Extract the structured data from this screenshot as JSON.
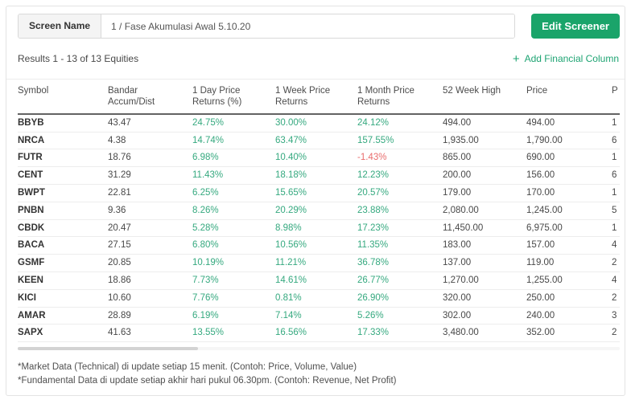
{
  "header": {
    "screen_name_label": "Screen Name",
    "screen_name_value": "1 / Fase Akumulasi Awal 5.10.20",
    "edit_button_label": "Edit Screener"
  },
  "results_bar": {
    "results_text": "Results 1 - 13 of 13 Equities",
    "plus_icon": "+",
    "add_column_label": "Add Financial Column"
  },
  "table": {
    "columns": [
      "Symbol",
      "Bandar Accum/Dist",
      "1 Day Price Returns (%)",
      "1 Week Price Returns",
      "1 Month Price Returns",
      "52 Week High",
      "Price",
      "P"
    ],
    "rows": [
      {
        "symbol": "BBYB",
        "bandar_accum_dist": "43.47",
        "day_return": "24.75%",
        "week_return": "30.00%",
        "month_return": "24.12%",
        "week52_high": "494.00",
        "price": "494.00",
        "p": "1"
      },
      {
        "symbol": "NRCA",
        "bandar_accum_dist": "4.38",
        "day_return": "14.74%",
        "week_return": "63.47%",
        "month_return": "157.55%",
        "week52_high": "1,935.00",
        "price": "1,790.00",
        "p": "6"
      },
      {
        "symbol": "FUTR",
        "bandar_accum_dist": "18.76",
        "day_return": "6.98%",
        "week_return": "10.40%",
        "month_return": "-1.43%",
        "week52_high": "865.00",
        "price": "690.00",
        "p": "1"
      },
      {
        "symbol": "CENT",
        "bandar_accum_dist": "31.29",
        "day_return": "11.43%",
        "week_return": "18.18%",
        "month_return": "12.23%",
        "week52_high": "200.00",
        "price": "156.00",
        "p": "6"
      },
      {
        "symbol": "BWPT",
        "bandar_accum_dist": "22.81",
        "day_return": "6.25%",
        "week_return": "15.65%",
        "month_return": "20.57%",
        "week52_high": "179.00",
        "price": "170.00",
        "p": "1"
      },
      {
        "symbol": "PNBN",
        "bandar_accum_dist": "9.36",
        "day_return": "8.26%",
        "week_return": "20.29%",
        "month_return": "23.88%",
        "week52_high": "2,080.00",
        "price": "1,245.00",
        "p": "5"
      },
      {
        "symbol": "CBDK",
        "bandar_accum_dist": "20.47",
        "day_return": "5.28%",
        "week_return": "8.98%",
        "month_return": "17.23%",
        "week52_high": "11,450.00",
        "price": "6,975.00",
        "p": "1"
      },
      {
        "symbol": "BACA",
        "bandar_accum_dist": "27.15",
        "day_return": "6.80%",
        "week_return": "10.56%",
        "month_return": "11.35%",
        "week52_high": "183.00",
        "price": "157.00",
        "p": "4"
      },
      {
        "symbol": "GSMF",
        "bandar_accum_dist": "20.85",
        "day_return": "10.19%",
        "week_return": "11.21%",
        "month_return": "36.78%",
        "week52_high": "137.00",
        "price": "119.00",
        "p": "2"
      },
      {
        "symbol": "KEEN",
        "bandar_accum_dist": "18.86",
        "day_return": "7.73%",
        "week_return": "14.61%",
        "month_return": "26.77%",
        "week52_high": "1,270.00",
        "price": "1,255.00",
        "p": "4"
      },
      {
        "symbol": "KICI",
        "bandar_accum_dist": "10.60",
        "day_return": "7.76%",
        "week_return": "0.81%",
        "month_return": "26.90%",
        "week52_high": "320.00",
        "price": "250.00",
        "p": "2"
      },
      {
        "symbol": "AMAR",
        "bandar_accum_dist": "28.89",
        "day_return": "6.19%",
        "week_return": "7.14%",
        "month_return": "5.26%",
        "week52_high": "302.00",
        "price": "240.00",
        "p": "3"
      },
      {
        "symbol": "SAPX",
        "bandar_accum_dist": "41.63",
        "day_return": "13.55%",
        "week_return": "16.56%",
        "month_return": "17.33%",
        "week52_high": "3,480.00",
        "price": "352.00",
        "p": "2"
      }
    ]
  },
  "footnotes": [
    "*Market Data (Technical) di update setiap 15 menit. (Contoh: Price, Volume, Value)",
    "*Fundamental Data di update setiap akhir hari pukul 06.30pm. (Contoh: Revenue, Net Profit)"
  ],
  "colors": {
    "positive": "#35a97f",
    "negative": "#e96d6d",
    "button_green": "#1aa46a",
    "link_green": "#1ea473"
  }
}
